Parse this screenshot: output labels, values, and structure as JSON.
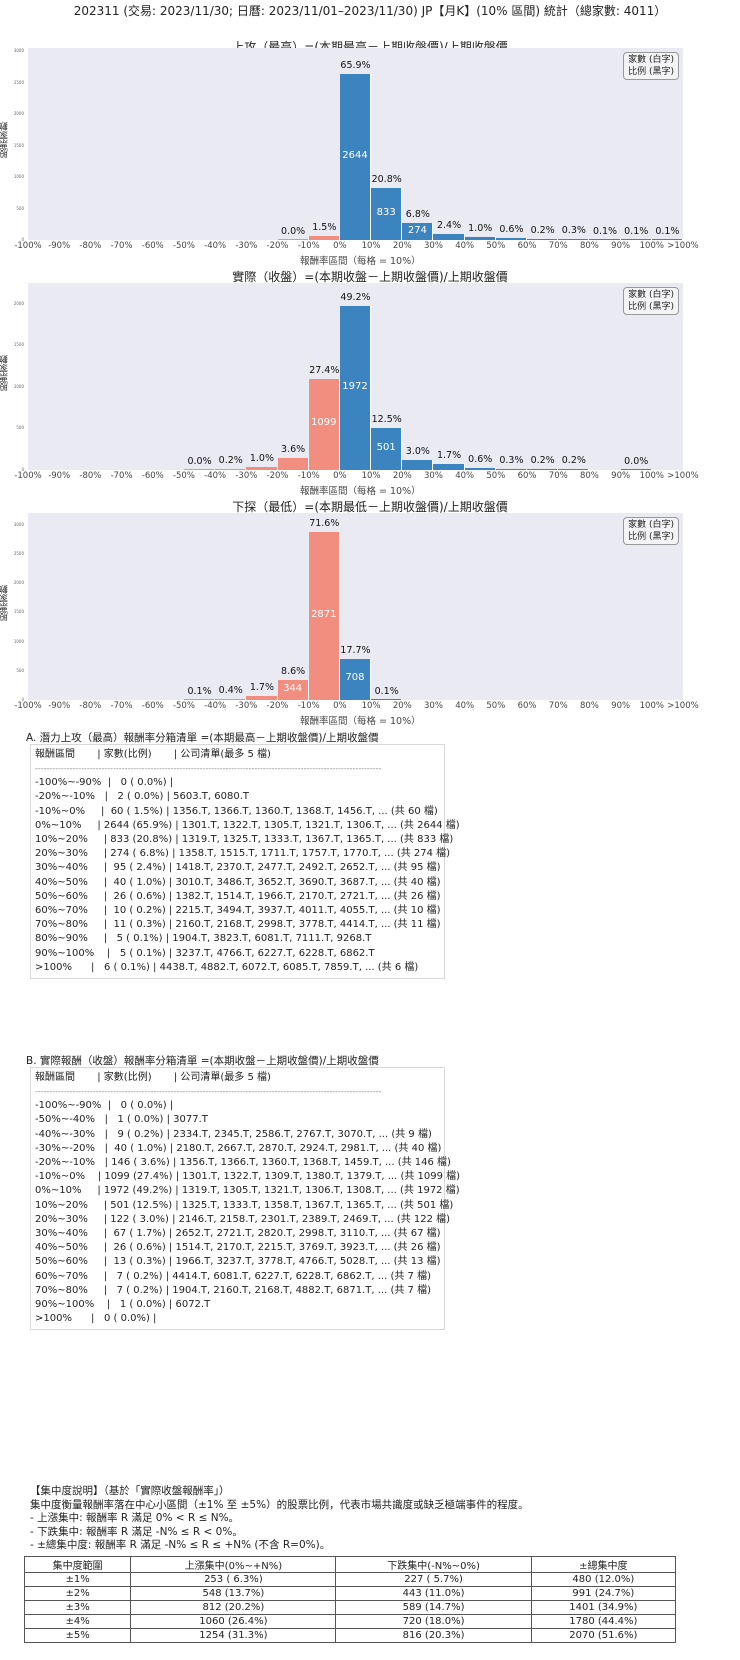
{
  "header": {
    "title": "202311 (交易: 2023/11/30; 日曆: 2023/11/01–2023/11/30) JP【月K】(10% 區間) 統計（總家數: 4011）"
  },
  "legend": {
    "line1": "家數 (白字)",
    "line2": "比例 (黑字)"
  },
  "axis": {
    "ylabel": "股票家數",
    "xlabel": "報酬率區間（每格 = 10%）",
    "xlabel_short": "報酬率區間"
  },
  "chart_data": [
    {
      "type": "bar",
      "title": "上攻（最高）=(本期最高－上期收盤價)/上期收盤價",
      "xlabel": "報酬率區間（每格 = 10%）",
      "ylabel": "股票家數",
      "ylim": [
        0,
        3050
      ],
      "yticks": [
        0,
        500,
        1000,
        1500,
        2000,
        2500,
        3000
      ],
      "categories": [
        "-100%~-90%",
        "-90%~-80%",
        "-80%~-70%",
        "-70%~-60%",
        "-60%~-50%",
        "-50%~-40%",
        "-40%~-30%",
        "-30%~-20%",
        "-20%~-10%",
        "-10%~0%",
        "0%~10%",
        "10%~20%",
        "20%~30%",
        "30%~40%",
        "40%~50%",
        "50%~60%",
        "60%~70%",
        "70%~80%",
        "80%~90%",
        "90%~100%",
        ">100%"
      ],
      "values": [
        0,
        0,
        0,
        0,
        0,
        0,
        0,
        0,
        2,
        60,
        2644,
        833,
        274,
        95,
        40,
        26,
        10,
        11,
        5,
        5,
        6
      ],
      "percent_labels": [
        "",
        "",
        "",
        "",
        "",
        "",
        "",
        "",
        "0.0%",
        "1.5%",
        "65.9%",
        "20.8%",
        "6.8%",
        "2.4%",
        "1.0%",
        "0.6%",
        "0.2%",
        "0.3%",
        "0.1%",
        "0.1%",
        "0.1%"
      ]
    },
    {
      "type": "bar",
      "title": "實際（收盤）=(本期收盤－上期收盤價)/上期收盤價",
      "xlabel": "報酬率區間（每格 = 10%）",
      "ylabel": "股票家數",
      "ylim": [
        0,
        2250
      ],
      "yticks": [
        0,
        500,
        1000,
        1500,
        2000
      ],
      "categories": [
        "-100%~-90%",
        "-90%~-80%",
        "-80%~-70%",
        "-70%~-60%",
        "-60%~-50%",
        "-50%~-40%",
        "-40%~-30%",
        "-30%~-20%",
        "-20%~-10%",
        "-10%~0%",
        "0%~10%",
        "10%~20%",
        "20%~30%",
        "30%~40%",
        "40%~50%",
        "50%~60%",
        "60%~70%",
        "70%~80%",
        "80%~90%",
        "90%~100%",
        ">100%"
      ],
      "values": [
        0,
        0,
        0,
        0,
        0,
        1,
        9,
        40,
        146,
        1099,
        1972,
        501,
        122,
        67,
        26,
        13,
        7,
        7,
        0,
        1,
        0
      ],
      "percent_labels": [
        "",
        "",
        "",
        "",
        "",
        "0.0%",
        "0.2%",
        "1.0%",
        "3.6%",
        "27.4%",
        "49.2%",
        "12.5%",
        "3.0%",
        "1.7%",
        "0.6%",
        "0.3%",
        "0.2%",
        "0.2%",
        "",
        "0.0%",
        ""
      ]
    },
    {
      "type": "bar",
      "title": "下探（最低）=(本期最低－上期收盤價)/上期收盤價",
      "xlabel": "報酬率區間（每格 = 10%）",
      "ylabel": "股票家數",
      "ylim": [
        0,
        3200
      ],
      "yticks": [
        0,
        500,
        1000,
        1500,
        2000,
        2500,
        3000
      ],
      "categories": [
        "-100%~-90%",
        "-90%~-80%",
        "-80%~-70%",
        "-70%~-60%",
        "-60%~-50%",
        "-50%~-40%",
        "-40%~-30%",
        "-30%~-20%",
        "-20%~-10%",
        "-10%~0%",
        "0%~10%",
        "10%~20%",
        "20%~30%",
        "30%~40%",
        "40%~50%",
        "50%~60%",
        "60%~70%",
        "70%~80%",
        "80%~90%",
        "90%~100%",
        ">100%"
      ],
      "values": [
        0,
        0,
        0,
        0,
        0,
        4,
        16,
        68,
        344,
        2871,
        708,
        2,
        0,
        0,
        0,
        0,
        0,
        0,
        0,
        0,
        0
      ],
      "percent_labels": [
        "",
        "",
        "",
        "",
        "",
        "0.1%",
        "0.4%",
        "1.7%",
        "8.6%",
        "71.6%",
        "17.7%",
        "0.1%",
        "",
        "",
        "",
        "",
        "",
        "",
        "",
        "",
        ""
      ]
    }
  ],
  "xticks": [
    "-100%",
    "-90%",
    "-80%",
    "-70%",
    "-60%",
    "-50%",
    "-40%",
    "-30%",
    "-20%",
    "-10%",
    "0%",
    "10%",
    "20%",
    "30%",
    "40%",
    "50%",
    "60%",
    "70%",
    "80%",
    "90%",
    "100%",
    ">100%"
  ],
  "list_a": {
    "title": "A. 潛力上攻（最高）報酬率分箱清單 =(本期最高－上期收盤價)/上期收盤價",
    "header": "報酬區間       | 家數(比例)       | 公司清單(最多 5 檔)",
    "rows": [
      "-100%~-90%  |   0 ( 0.0%) |",
      "-20%~-10%   |   2 ( 0.0%) | 5603.T, 6080.T",
      "-10%~0%     |  60 ( 1.5%) | 1356.T, 1366.T, 1360.T, 1368.T, 1456.T, ... (共 60 檔)",
      "0%~10%     | 2644 (65.9%) | 1301.T, 1322.T, 1305.T, 1321.T, 1306.T, ... (共 2644 檔)",
      "10%~20%     | 833 (20.8%) | 1319.T, 1325.T, 1333.T, 1367.T, 1365.T, ... (共 833 檔)",
      "20%~30%     | 274 ( 6.8%) | 1358.T, 1515.T, 1711.T, 1757.T, 1770.T, ... (共 274 檔)",
      "30%~40%     |  95 ( 2.4%) | 1418.T, 2370.T, 2477.T, 2492.T, 2652.T, ... (共 95 檔)",
      "40%~50%     |  40 ( 1.0%) | 3010.T, 3486.T, 3652.T, 3690.T, 3687.T, ... (共 40 檔)",
      "50%~60%     |  26 ( 0.6%) | 1382.T, 1514.T, 1966.T, 2170.T, 2721.T, ... (共 26 檔)",
      "60%~70%     |  10 ( 0.2%) | 2215.T, 3494.T, 3937.T, 4011.T, 4055.T, ... (共 10 檔)",
      "70%~80%     |  11 ( 0.3%) | 2160.T, 2168.T, 2998.T, 3778.T, 4414.T, ... (共 11 檔)",
      "80%~90%     |   5 ( 0.1%) | 1904.T, 3823.T, 6081.T, 7111.T, 9268.T",
      "90%~100%    |   5 ( 0.1%) | 3237.T, 4766.T, 6227.T, 6228.T, 6862.T",
      ">100%      |   6 ( 0.1%) | 4438.T, 4882.T, 6072.T, 6085.T, 7859.T, ... (共 6 檔)"
    ]
  },
  "list_b": {
    "title": "B. 實際報酬（收盤）報酬率分箱清單 =(本期收盤－上期收盤價)/上期收盤價",
    "header": "報酬區間       | 家數(比例)       | 公司清單(最多 5 檔)",
    "rows": [
      "-100%~-90%  |   0 ( 0.0%) |",
      "-50%~-40%   |   1 ( 0.0%) | 3077.T",
      "-40%~-30%   |   9 ( 0.2%) | 2334.T, 2345.T, 2586.T, 2767.T, 3070.T, ... (共 9 檔)",
      "-30%~-20%   |  40 ( 1.0%) | 2180.T, 2667.T, 2870.T, 2924.T, 2981.T, ... (共 40 檔)",
      "-20%~-10%   | 146 ( 3.6%) | 1356.T, 1366.T, 1360.T, 1368.T, 1459.T, ... (共 146 檔)",
      "-10%~0%    | 1099 (27.4%) | 1301.T, 1322.T, 1309.T, 1380.T, 1379.T, ... (共 1099 檔)",
      "0%~10%     | 1972 (49.2%) | 1319.T, 1305.T, 1321.T, 1306.T, 1308.T, ... (共 1972 檔)",
      "10%~20%     | 501 (12.5%) | 1325.T, 1333.T, 1358.T, 1367.T, 1365.T, ... (共 501 檔)",
      "20%~30%     | 122 ( 3.0%) | 2146.T, 2158.T, 2301.T, 2389.T, 2469.T, ... (共 122 檔)",
      "30%~40%     |  67 ( 1.7%) | 2652.T, 2721.T, 2820.T, 2998.T, 3110.T, ... (共 67 檔)",
      "40%~50%     |  26 ( 0.6%) | 1514.T, 2170.T, 2215.T, 3769.T, 3923.T, ... (共 26 檔)",
      "50%~60%     |  13 ( 0.3%) | 1966.T, 3237.T, 3778.T, 4766.T, 5028.T, ... (共 13 檔)",
      "60%~70%     |   7 ( 0.2%) | 4414.T, 6081.T, 6227.T, 6228.T, 6862.T, ... (共 7 檔)",
      "70%~80%     |   7 ( 0.2%) | 1904.T, 2160.T, 2168.T, 4882.T, 6871.T, ... (共 7 檔)",
      "90%~100%    |   1 ( 0.0%) | 6072.T",
      ">100%      |   0 ( 0.0%) |"
    ]
  },
  "concentration": {
    "title": "【集中度說明】（基於「實際收盤報酬率」）",
    "desc": "集中度衡量報酬率落在中心小區間（±1% 至 ±5%）的股票比例，代表市場共識度或缺乏極端事件的程度。",
    "bullets": [
      "- 上漲集中: 報酬率 R 滿足 0% < R ≤ N%。",
      "- 下跌集中: 報酬率 R 滿足 -N% ≤ R < 0%。",
      "- ±總集中度: 報酬率 R 滿足 -N% ≤ R ≤ +N% (不含 R=0%)。"
    ],
    "table": {
      "headers": [
        "集中度範圍",
        "上漲集中(0%~+N%)",
        "下跌集中(-N%~0%)",
        "±總集中度"
      ],
      "rows": [
        [
          "±1%",
          "253 ( 6.3%)",
          "227 ( 5.7%)",
          "480 (12.0%)"
        ],
        [
          "±2%",
          "548 (13.7%)",
          "443 (11.0%)",
          "991 (24.7%)"
        ],
        [
          "±3%",
          "812 (20.2%)",
          "589 (14.7%)",
          "1401 (34.9%)"
        ],
        [
          "±4%",
          "1060 (26.4%)",
          "720 (18.0%)",
          "1780 (44.4%)"
        ],
        [
          "±5%",
          "1254 (31.3%)",
          "816 (20.3%)",
          "2070 (51.6%)"
        ]
      ]
    }
  }
}
